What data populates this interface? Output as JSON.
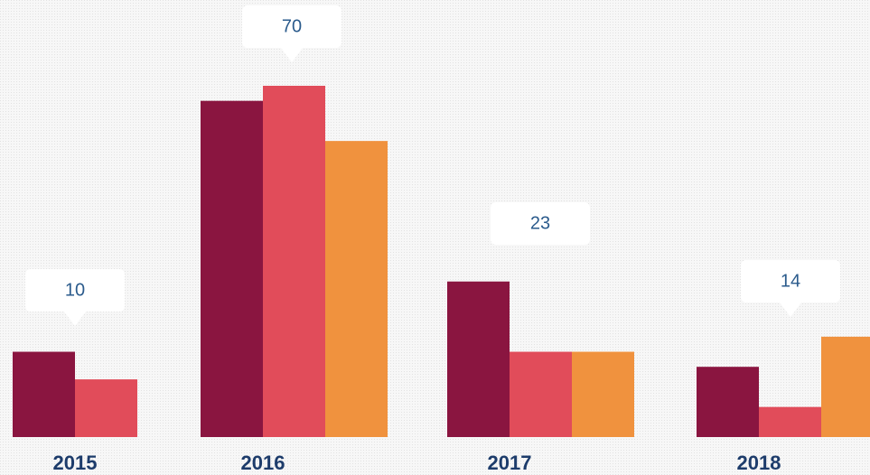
{
  "chart_data": {
    "type": "bar",
    "categories": [
      "2015",
      "2016",
      "2017",
      "2018"
    ],
    "annotations": [
      "10",
      "70",
      "23",
      "14"
    ],
    "series": [
      {
        "color": "#8a1540",
        "values": [
          17,
          67,
          31,
          14
        ]
      },
      {
        "color": "#e14c5a",
        "values": [
          11.5,
          70,
          17,
          6
        ]
      },
      {
        "color": "#f0923e",
        "values": [
          null,
          59,
          17,
          20
        ]
      }
    ],
    "ylim": [
      0,
      70
    ]
  }
}
